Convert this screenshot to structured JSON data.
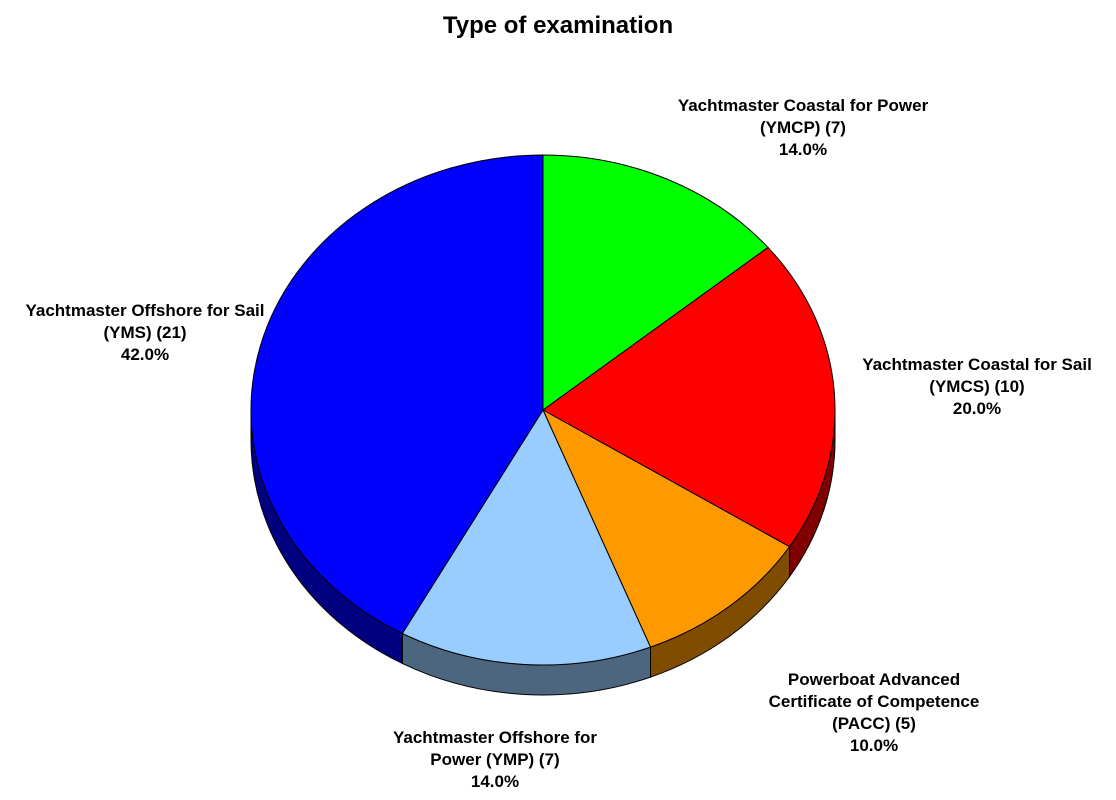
{
  "chart_data": {
    "type": "pie",
    "title": "Type of examination",
    "categories": [
      "Yachtmaster Coastal for Power (YMCP) (7)",
      "Yachtmaster Coastal for Sail (YMCS) (10)",
      "Powerboat Advanced Certificate of Competence (PACC) (5)",
      "Yachtmaster Offshore for Power (YMP) (7)",
      "Yachtmaster Offshore for Sail (YMS) (21)"
    ],
    "values": [
      14,
      20,
      10,
      14,
      42
    ],
    "value_labels": [
      "14.0%",
      "20.0%",
      "10.0%",
      "14.0%",
      "42.0%"
    ],
    "colors": [
      "#00ff00",
      "#ff0000",
      "#ff9900",
      "#99ccff",
      "#0000ff"
    ]
  }
}
